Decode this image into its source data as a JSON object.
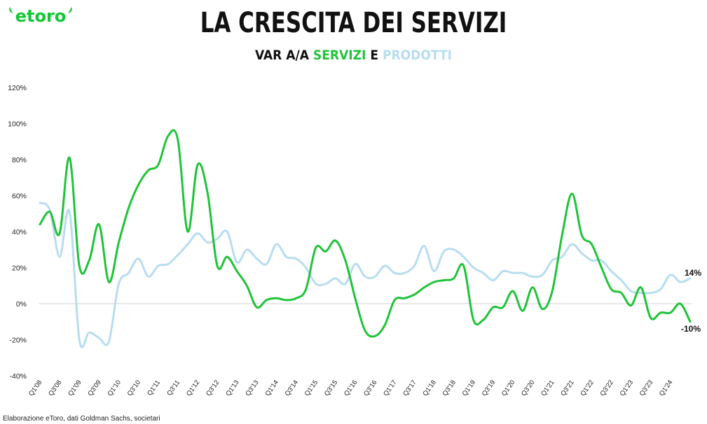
{
  "brand": {
    "name": "etoro",
    "color": "#13c636"
  },
  "title": "LA CRESCITA DEI SERVIZI",
  "subtitle": {
    "prefix": "VAR A/A ",
    "series1": "SERVIZI",
    "connector": " E ",
    "series2": "PRODOTTI"
  },
  "source": "Elaborazione eToro, dati Goldman Sachs, societari",
  "chart_data": {
    "type": "line",
    "ylim": [
      -40,
      120
    ],
    "yticks": [
      "-40%",
      "-20%",
      "0%",
      "20%",
      "40%",
      "60%",
      "80%",
      "100%",
      "120%"
    ],
    "ytick_values": [
      -40,
      -20,
      0,
      20,
      40,
      60,
      80,
      100,
      120
    ],
    "xtick_labels": [
      "Q1'08",
      "Q3'08",
      "Q1'09",
      "Q3'09",
      "Q1'10",
      "Q3'10",
      "Q1'11",
      "Q3'11",
      "Q1'12",
      "Q3'12",
      "Q1'13",
      "Q3'13",
      "Q1'14",
      "Q3'14",
      "Q1'15",
      "Q3'15",
      "Q1'16",
      "Q3'16",
      "Q1'17",
      "Q3'17",
      "Q1'18",
      "Q3'18",
      "Q1'19",
      "Q3'19",
      "Q1'20",
      "Q3'20",
      "Q1'21",
      "Q3'21",
      "Q1'22",
      "Q3'22",
      "Q1'23",
      "Q3'23",
      "Q1'24"
    ],
    "quarters_count": 67,
    "grid": false,
    "series": [
      {
        "name": "SERVIZI",
        "color": "#20c33a",
        "end_label": "-10%",
        "values": [
          44,
          51,
          39,
          81,
          21,
          24,
          44,
          12,
          34,
          53,
          66,
          74,
          77,
          93,
          91,
          40,
          77,
          62,
          21,
          26,
          18,
          10,
          -2,
          2,
          3,
          2,
          3,
          8,
          31,
          29,
          35,
          24,
          3,
          -15,
          -18,
          -12,
          2,
          3,
          5,
          9,
          12,
          13,
          14,
          21,
          -9,
          -9,
          -2,
          -2,
          7,
          -4,
          9,
          -3,
          7,
          38,
          61,
          38,
          33,
          20,
          8,
          6,
          -1,
          9,
          -8,
          -5,
          -5,
          -5,
          -10
        ],
        "final_override": {
          "index": 66,
          "value": -10,
          "prev": 0
        }
      },
      {
        "name": "PRODOTTI",
        "color": "#b8ddf0",
        "end_label": "14%",
        "values": [
          56,
          52,
          26,
          51,
          -20,
          -16,
          -19,
          -21,
          11,
          17,
          25,
          15,
          21,
          22,
          27,
          33,
          39,
          34,
          36,
          40,
          23,
          30,
          25,
          22,
          33,
          26,
          25,
          20,
          11,
          11,
          14,
          11,
          22,
          15,
          15,
          21,
          17,
          17,
          21,
          32,
          18,
          29,
          30,
          26,
          20,
          17,
          13,
          18,
          17,
          17,
          15,
          16,
          24,
          26,
          33,
          28,
          24,
          24,
          18,
          13,
          7,
          6,
          6,
          8,
          16,
          12,
          14
        ]
      }
    ]
  }
}
